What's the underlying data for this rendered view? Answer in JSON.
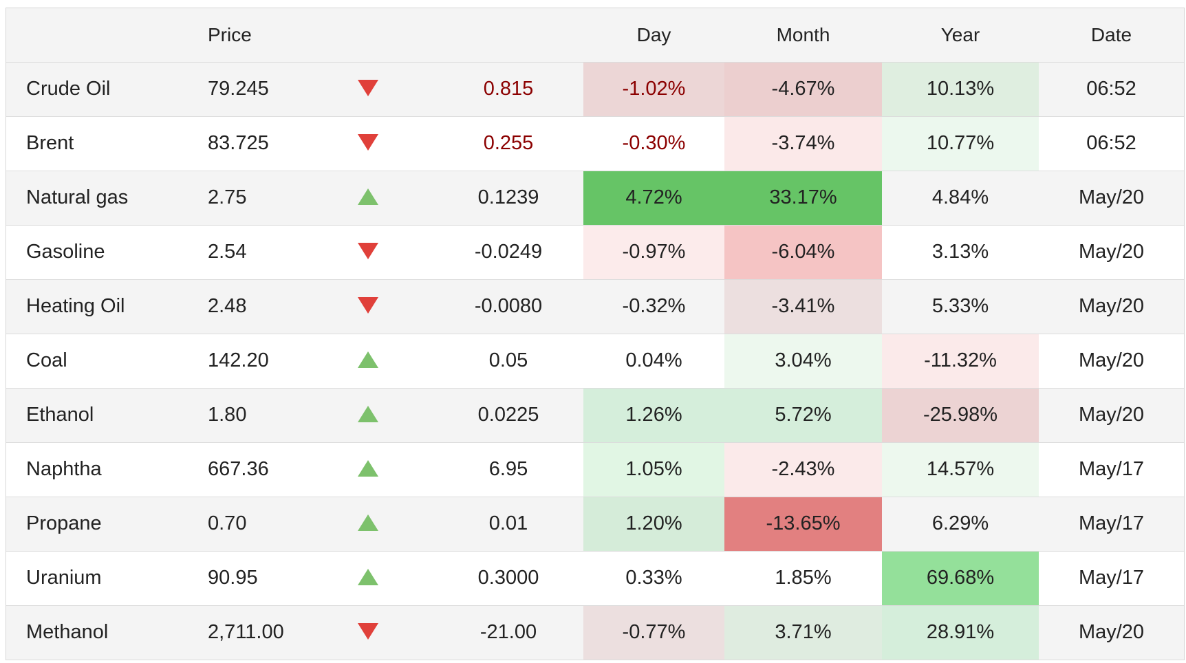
{
  "header": {
    "price": "Price",
    "day": "Day",
    "month": "Month",
    "year": "Year",
    "date": "Date"
  },
  "rows": [
    {
      "name": "Crude Oil",
      "price": "79.245",
      "direction": "down",
      "change": "0.815",
      "change_color": "#8b0000",
      "day": "-1.02%",
      "month": "-4.67%",
      "year": "10.13%",
      "date": "06:52",
      "day_bg": "#ecd6d6",
      "month_bg": "#eccfcf",
      "year_bg": "#dfeee0"
    },
    {
      "name": "Brent",
      "price": "83.725",
      "direction": "down",
      "change": "0.255",
      "change_color": "#8b0000",
      "day": "-0.30%",
      "month": "-3.74%",
      "year": "10.77%",
      "date": "06:52",
      "day_bg": "",
      "month_bg": "#fbe9e9",
      "year_bg": "#ecf8ee"
    },
    {
      "name": "Natural gas",
      "price": "2.75",
      "direction": "up",
      "change": "0.1239",
      "change_color": "",
      "day": "4.72%",
      "month": "33.17%",
      "year": "4.84%",
      "date": "May/20",
      "day_bg": "#66c466",
      "month_bg": "#66c466",
      "year_bg": ""
    },
    {
      "name": "Gasoline",
      "price": "2.54",
      "direction": "down",
      "change": "-0.0249",
      "change_color": "",
      "day": "-0.97%",
      "month": "-6.04%",
      "year": "3.13%",
      "date": "May/20",
      "day_bg": "#fcebeb",
      "month_bg": "#f5c4c4",
      "year_bg": ""
    },
    {
      "name": "Heating Oil",
      "price": "2.48",
      "direction": "down",
      "change": "-0.0080",
      "change_color": "",
      "day": "-0.32%",
      "month": "-3.41%",
      "year": "5.33%",
      "date": "May/20",
      "day_bg": "",
      "month_bg": "#ecdfdf",
      "year_bg": ""
    },
    {
      "name": "Coal",
      "price": "142.20",
      "direction": "up",
      "change": "0.05",
      "change_color": "",
      "day": "0.04%",
      "month": "3.04%",
      "year": "-11.32%",
      "date": "May/20",
      "day_bg": "",
      "month_bg": "#edf8ee",
      "year_bg": "#fbeaea"
    },
    {
      "name": "Ethanol",
      "price": "1.80",
      "direction": "up",
      "change": "0.0225",
      "change_color": "",
      "day": "1.26%",
      "month": "5.72%",
      "year": "-25.98%",
      "date": "May/20",
      "day_bg": "#d5eedb",
      "month_bg": "#d5eedb",
      "year_bg": "#ecd3d3"
    },
    {
      "name": "Naphtha",
      "price": "667.36",
      "direction": "up",
      "change": "6.95",
      "change_color": "",
      "day": "1.05%",
      "month": "-2.43%",
      "year": "14.57%",
      "date": "May/17",
      "day_bg": "#e1f6e4",
      "month_bg": "#fbeaea",
      "year_bg": "#edf8ee"
    },
    {
      "name": "Propane",
      "price": "0.70",
      "direction": "up",
      "change": "0.01",
      "change_color": "",
      "day": "1.20%",
      "month": "-13.65%",
      "year": "6.29%",
      "date": "May/17",
      "day_bg": "#d5ecd9",
      "month_bg": "#e28080",
      "year_bg": ""
    },
    {
      "name": "Uranium",
      "price": "90.95",
      "direction": "up",
      "change": "0.3000",
      "change_color": "",
      "day": "0.33%",
      "month": "1.85%",
      "year": "69.68%",
      "date": "May/17",
      "day_bg": "",
      "month_bg": "",
      "year_bg": "#94e09a"
    },
    {
      "name": "Methanol",
      "price": "2,711.00",
      "direction": "down",
      "change": "-21.00",
      "change_color": "",
      "day": "-0.77%",
      "month": "3.71%",
      "year": "28.91%",
      "date": "May/20",
      "day_bg": "#ecdfdf",
      "month_bg": "#dfece0",
      "year_bg": "#d5eedb"
    }
  ]
}
